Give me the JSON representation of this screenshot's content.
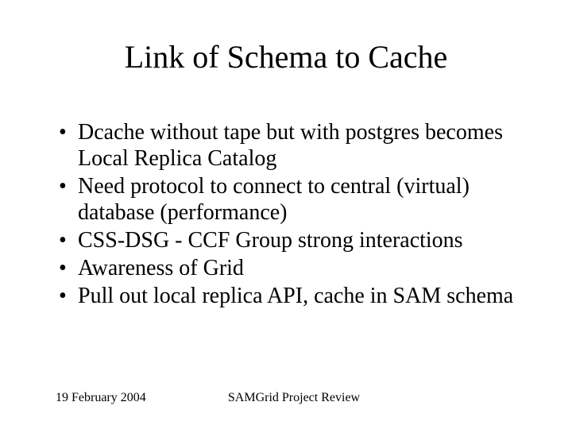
{
  "slide": {
    "title": "Link of Schema to Cache",
    "bullets": [
      "Dcache without tape but with postgres becomes Local Replica Catalog",
      "Need protocol to connect to central (virtual) database (performance)",
      "CSS-DSG - CCF Group strong interactions",
      "Awareness of Grid",
      "Pull out local replica API, cache in SAM schema"
    ],
    "footer": {
      "date": "19 February 2004",
      "center": "SAMGrid Project Review"
    }
  },
  "style": {
    "background_color": "#ffffff",
    "text_color": "#000000",
    "font_family": "Times New Roman",
    "title_fontsize": 40,
    "body_fontsize": 28,
    "footer_fontsize": 16,
    "slide_width": 720,
    "slide_height": 540
  }
}
